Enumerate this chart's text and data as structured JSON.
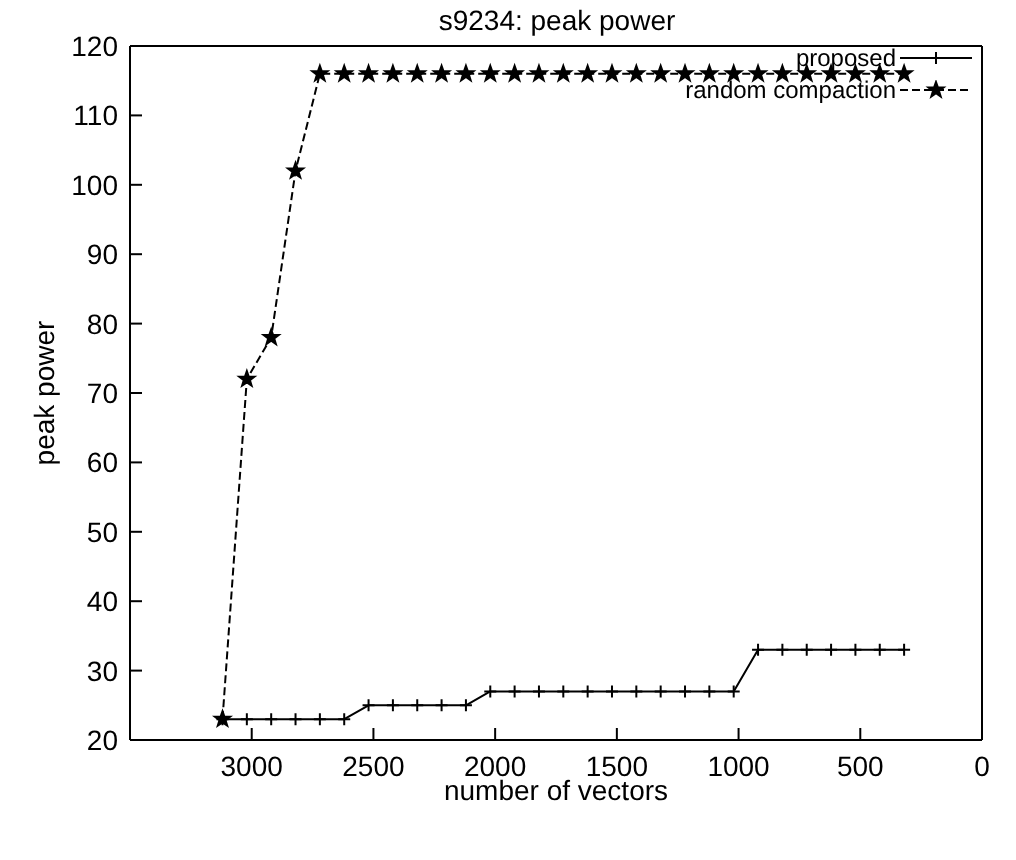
{
  "chart_data": {
    "type": "line",
    "title": "s9234: peak power",
    "xlabel": "number of vectors",
    "ylabel": "peak power",
    "x": [
      3120,
      3020,
      2920,
      2820,
      2720,
      2620,
      2520,
      2420,
      2320,
      2220,
      2120,
      2020,
      1920,
      1820,
      1720,
      1620,
      1520,
      1420,
      1320,
      1220,
      1120,
      1020,
      920,
      820,
      720,
      620,
      520,
      420,
      320
    ],
    "series": [
      {
        "name": "proposed",
        "color": "#000000",
        "marker": "cross",
        "line_style": "solid",
        "values": [
          23,
          23,
          23,
          23,
          23,
          23,
          25,
          25,
          25,
          25,
          25,
          27,
          27,
          27,
          27,
          27,
          27,
          27,
          27,
          27,
          27,
          27,
          33,
          33,
          33,
          33,
          33,
          33,
          33
        ]
      },
      {
        "name": "random compaction",
        "color": "#000000",
        "marker": "star",
        "line_style": "dashed",
        "values": [
          23,
          72,
          78,
          102,
          116,
          116,
          116,
          116,
          116,
          116,
          116,
          116,
          116,
          116,
          116,
          116,
          116,
          116,
          116,
          116,
          116,
          116,
          116,
          116,
          116,
          116,
          116,
          116,
          116
        ]
      }
    ],
    "xlim": [
      3500,
      0
    ],
    "xticks": [
      3000,
      2500,
      2000,
      1500,
      1000,
      500,
      0
    ],
    "ylim": [
      20,
      120
    ],
    "yticks": [
      20,
      30,
      40,
      50,
      60,
      70,
      80,
      90,
      100,
      110,
      120
    ],
    "grid": false,
    "legend": "top right"
  }
}
